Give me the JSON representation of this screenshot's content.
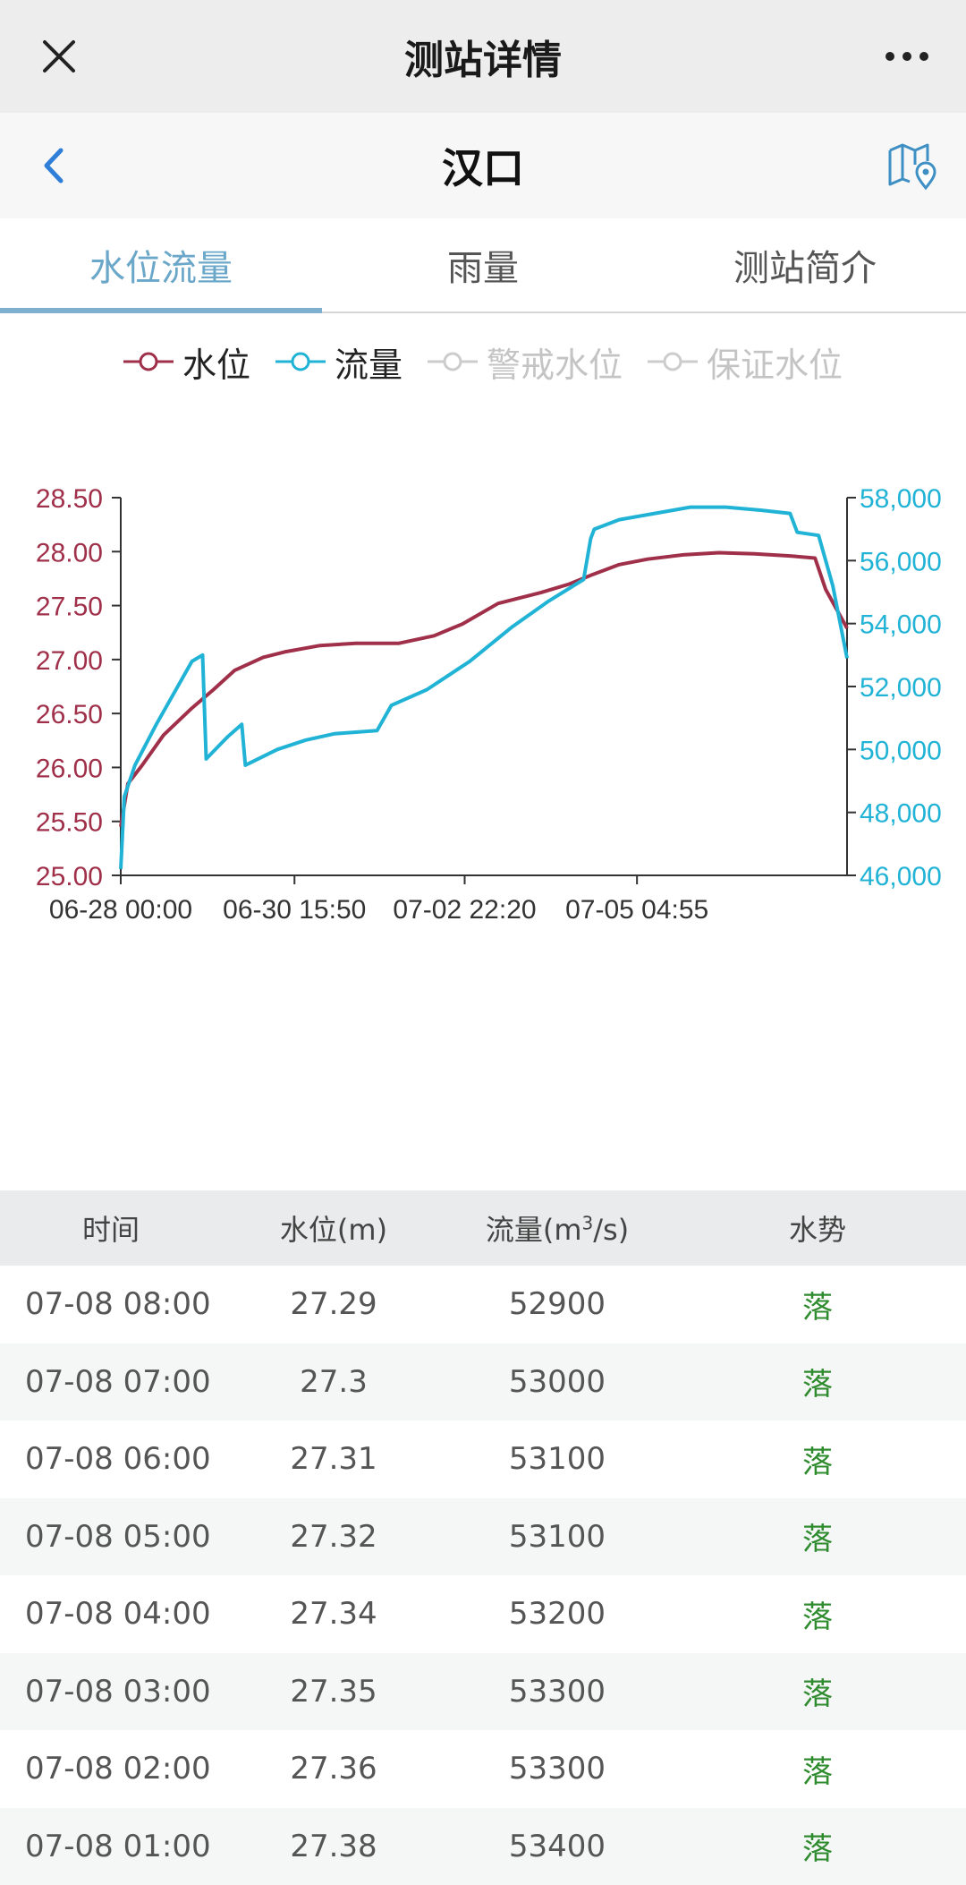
{
  "nav": {
    "title": "测站详情"
  },
  "station": {
    "name": "汉口"
  },
  "tabs": [
    {
      "label": "水位流量",
      "active": true
    },
    {
      "label": "雨量",
      "active": false
    },
    {
      "label": "测站简介",
      "active": false
    }
  ],
  "legend": [
    {
      "label": "水位",
      "color": "#a0304a",
      "enabled": true
    },
    {
      "label": "流量",
      "color": "#21b3d6",
      "enabled": true
    },
    {
      "label": "警戒水位",
      "color": "#cccccc",
      "enabled": false
    },
    {
      "label": "保证水位",
      "color": "#cccccc",
      "enabled": false
    }
  ],
  "chart_data": {
    "type": "line",
    "x_ticks": [
      "06-28 00:00",
      "06-30 15:50",
      "07-02 22:20",
      "07-05 04:55"
    ],
    "y_left_ticks": [
      "25.00",
      "25.50",
      "26.00",
      "26.50",
      "27.00",
      "27.50",
      "28.00",
      "28.50"
    ],
    "y_right_ticks": [
      "46,000",
      "48,000",
      "50,000",
      "52,000",
      "54,000",
      "56,000",
      "58,000"
    ],
    "y_left_range": [
      25.0,
      28.5
    ],
    "y_right_range": [
      46000,
      58000
    ],
    "x_range_days": [
      0,
      10.2
    ],
    "series": [
      {
        "name": "水位",
        "axis": "left",
        "color": "#a0304a",
        "x": [
          0,
          0.1,
          0.3,
          0.6,
          1.0,
          1.3,
          1.6,
          2.0,
          2.3,
          2.8,
          3.3,
          3.9,
          4.4,
          4.8,
          5.3,
          5.9,
          6.3,
          6.6,
          7.0,
          7.4,
          7.9,
          8.4,
          8.9,
          9.4,
          9.75,
          9.9,
          10.2
        ],
        "y": [
          25.45,
          25.85,
          26.02,
          26.3,
          26.55,
          26.72,
          26.9,
          27.02,
          27.07,
          27.13,
          27.15,
          27.15,
          27.22,
          27.33,
          27.52,
          27.62,
          27.7,
          27.78,
          27.88,
          27.93,
          27.97,
          27.99,
          27.98,
          27.96,
          27.94,
          27.65,
          27.29
        ]
      },
      {
        "name": "流量",
        "axis": "right",
        "color": "#21b3d6",
        "x": [
          0,
          0.05,
          0.2,
          0.5,
          1.0,
          1.15,
          1.2,
          1.5,
          1.7,
          1.75,
          2.2,
          2.6,
          3.0,
          3.6,
          3.8,
          4.3,
          4.9,
          5.5,
          6.0,
          6.5,
          6.6,
          6.65,
          7.0,
          7.5,
          8.0,
          8.5,
          9.0,
          9.4,
          9.5,
          9.8,
          10.0,
          10.2
        ],
        "y": [
          46200,
          48500,
          49500,
          50800,
          52800,
          53000,
          49700,
          50400,
          50800,
          49500,
          50000,
          50300,
          50500,
          50600,
          51400,
          51900,
          52800,
          53900,
          54700,
          55400,
          56700,
          57000,
          57300,
          57500,
          57700,
          57700,
          57600,
          57500,
          56900,
          56800,
          55200,
          52900
        ]
      }
    ]
  },
  "table": {
    "headers": {
      "time": "时间",
      "water_level": "水位(m)",
      "flow_prefix": "流量(m",
      "flow_sup": "3",
      "flow_suffix": "/s)",
      "trend": "水势"
    },
    "rows": [
      {
        "time": "07-08 08:00",
        "water_level": "27.29",
        "flow": "52900",
        "trend": "落"
      },
      {
        "time": "07-08 07:00",
        "water_level": "27.3",
        "flow": "53000",
        "trend": "落"
      },
      {
        "time": "07-08 06:00",
        "water_level": "27.31",
        "flow": "53100",
        "trend": "落"
      },
      {
        "time": "07-08 05:00",
        "water_level": "27.32",
        "flow": "53100",
        "trend": "落"
      },
      {
        "time": "07-08 04:00",
        "water_level": "27.34",
        "flow": "53200",
        "trend": "落"
      },
      {
        "time": "07-08 03:00",
        "water_level": "27.35",
        "flow": "53300",
        "trend": "落"
      },
      {
        "time": "07-08 02:00",
        "water_level": "27.36",
        "flow": "53300",
        "trend": "落"
      },
      {
        "time": "07-08 01:00",
        "water_level": "27.38",
        "flow": "53400",
        "trend": "落"
      }
    ]
  },
  "icons": {
    "close": "close-icon",
    "more": "more-icon",
    "back": "back-chevron-icon",
    "map": "map-pin-icon"
  }
}
